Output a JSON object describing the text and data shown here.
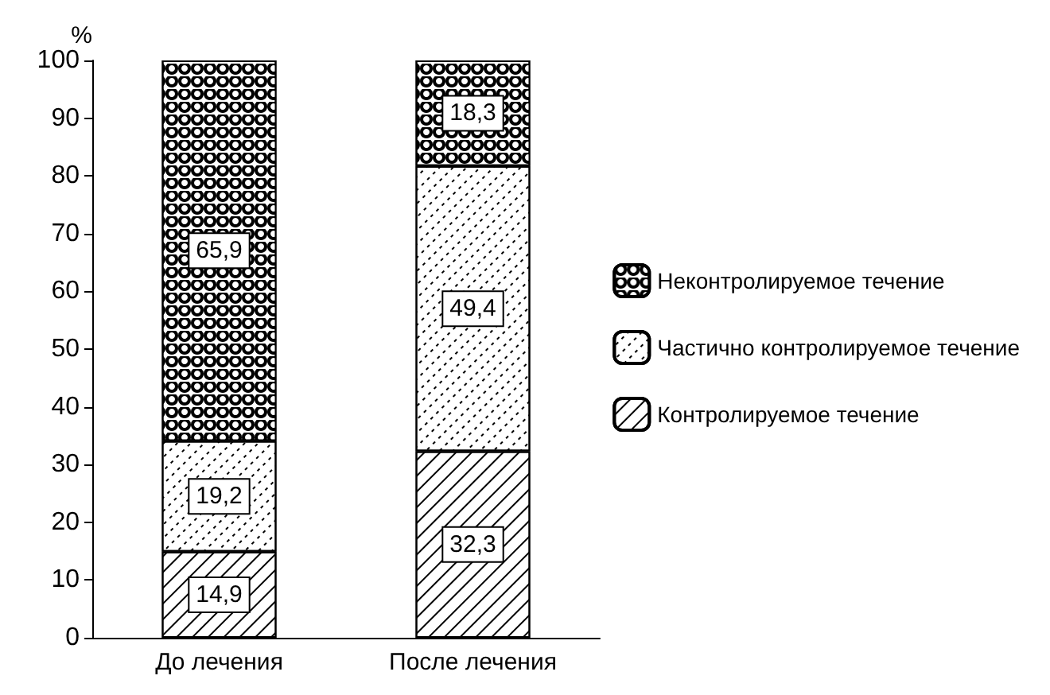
{
  "chart_data": {
    "type": "bar",
    "stacked": true,
    "ylabel": "%",
    "categories": [
      "До лечения",
      "После лечения"
    ],
    "series": [
      {
        "name": "Контролируемое течение",
        "color": "#ffffff",
        "values": [
          14.9,
          32.3
        ],
        "value_labels": [
          "14,9",
          "32,3"
        ]
      },
      {
        "name": "Частично контролируемое течение",
        "color": "#ffffff",
        "values": [
          19.2,
          49.4
        ],
        "value_labels": [
          "19,2",
          "49,4"
        ]
      },
      {
        "name": "Неконтролируемое течение",
        "color": "#ffffff",
        "values": [
          65.9,
          18.3
        ],
        "value_labels": [
          "65,9",
          "18,3"
        ]
      }
    ],
    "ylim": [
      0,
      100
    ],
    "yticks": [
      0,
      10,
      20,
      30,
      40,
      50,
      60,
      70,
      80,
      90,
      100
    ],
    "grid": false,
    "legend": "right"
  }
}
